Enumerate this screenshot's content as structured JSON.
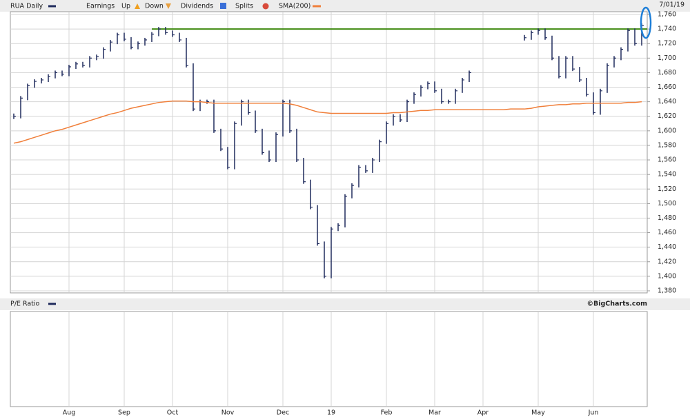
{
  "chart_data": {
    "type": "ohlc",
    "date": "7/01/19",
    "credit": "©BigCharts.com",
    "event_legend": {
      "label": "Earnings",
      "up": "Up",
      "down": "Down",
      "dividends": "Dividends",
      "splits": "Splits"
    },
    "lower_panel": {
      "title": "P/E Ratio"
    },
    "hline": {
      "value": 1740,
      "color": "#3f8a10"
    },
    "categories": [
      null,
      null,
      null,
      null,
      null,
      null,
      null,
      null,
      "Aug",
      null,
      null,
      null,
      null,
      null,
      null,
      null,
      "Sep",
      null,
      null,
      null,
      null,
      null,
      null,
      "Oct",
      null,
      null,
      null,
      null,
      null,
      null,
      null,
      "Nov",
      null,
      null,
      null,
      null,
      null,
      null,
      null,
      "Dec",
      null,
      null,
      null,
      null,
      null,
      null,
      "19",
      null,
      null,
      null,
      null,
      null,
      null,
      null,
      "Feb",
      null,
      null,
      null,
      null,
      null,
      null,
      "Mar",
      null,
      null,
      null,
      null,
      null,
      null,
      "Apr",
      null,
      null,
      null,
      null,
      null,
      null,
      null,
      "May",
      null,
      null,
      null,
      null,
      null,
      null,
      null,
      "Jun",
      null,
      null,
      null,
      null,
      null,
      null,
      null
    ],
    "series": [
      {
        "name": "RUA Daily",
        "color": "#1f2a5c",
        "values": [
          1620,
          1645,
          1662,
          1668,
          1670,
          1675,
          1680,
          1678,
          1688,
          1692,
          1690,
          1700,
          1702,
          1712,
          1722,
          1732,
          1726,
          1715,
          1720,
          1725,
          1733,
          1740,
          1735,
          1732,
          1725,
          1690,
          1630,
          1640,
          1640,
          1600,
          1575,
          1550,
          1610,
          1640,
          1625,
          1600,
          1570,
          1560,
          1595,
          1640,
          1600,
          1560,
          1530,
          1495,
          1445,
          1400,
          1465,
          1470,
          1510,
          1525,
          1550,
          1545,
          1560,
          1585,
          1610,
          1620,
          1615,
          1640,
          1650,
          1660,
          1665,
          1655,
          1640,
          1640,
          1655,
          1670,
          1680,
          null,
          null,
          null,
          null,
          null,
          null,
          null,
          1728,
          1735,
          1738,
          1728,
          1700,
          1675,
          1700,
          1685,
          1670,
          1650,
          1625,
          1655,
          1690,
          1700,
          1712,
          1738,
          1720,
          1745
        ]
      },
      {
        "name": "SMA(200)",
        "color": "#f07f3a",
        "values": [
          1583,
          1585,
          1588,
          1591,
          1594,
          1597,
          1600,
          1602,
          1605,
          1608,
          1611,
          1614,
          1617,
          1620,
          1623,
          1625,
          1628,
          1631,
          1633,
          1635,
          1637,
          1639,
          1640,
          1641,
          1641,
          1641,
          1640,
          1640,
          1639,
          1638,
          1638,
          1638,
          1638,
          1638,
          1638,
          1638,
          1638,
          1638,
          1638,
          1638,
          1637,
          1635,
          1632,
          1629,
          1626,
          1625,
          1624,
          1624,
          1624,
          1624,
          1624,
          1624,
          1624,
          1624,
          1624,
          1625,
          1625,
          1626,
          1627,
          1628,
          1628,
          1629,
          1629,
          1629,
          1629,
          1629,
          1629,
          1629,
          1629,
          1629,
          1629,
          1629,
          1630,
          1630,
          1630,
          1631,
          1633,
          1634,
          1635,
          1636,
          1636,
          1637,
          1637,
          1638,
          1638,
          1638,
          1638,
          1638,
          1638,
          1639,
          1639,
          1640
        ]
      }
    ],
    "ylim": [
      1380,
      1760
    ],
    "yticks": [
      {
        "value": 1380,
        "label": "1,380"
      },
      {
        "value": 1400,
        "label": "1,400"
      },
      {
        "value": 1420,
        "label": "1,420"
      },
      {
        "value": 1440,
        "label": "1,440"
      },
      {
        "value": 1460,
        "label": "1,460"
      },
      {
        "value": 1480,
        "label": "1,480"
      },
      {
        "value": 1500,
        "label": "1,500"
      },
      {
        "value": 1520,
        "label": "1,520"
      },
      {
        "value": 1540,
        "label": "1,540"
      },
      {
        "value": 1560,
        "label": "1,560"
      },
      {
        "value": 1580,
        "label": "1,580"
      },
      {
        "value": 1600,
        "label": "1,600"
      },
      {
        "value": 1620,
        "label": "1,620"
      },
      {
        "value": 1640,
        "label": "1,640"
      },
      {
        "value": 1660,
        "label": "1,660"
      },
      {
        "value": 1680,
        "label": "1,680"
      },
      {
        "value": 1700,
        "label": "1,700"
      },
      {
        "value": 1720,
        "label": "1,720"
      },
      {
        "value": 1740,
        "label": "1,740"
      },
      {
        "value": 1760,
        "label": "1,760"
      }
    ],
    "grid": true
  }
}
